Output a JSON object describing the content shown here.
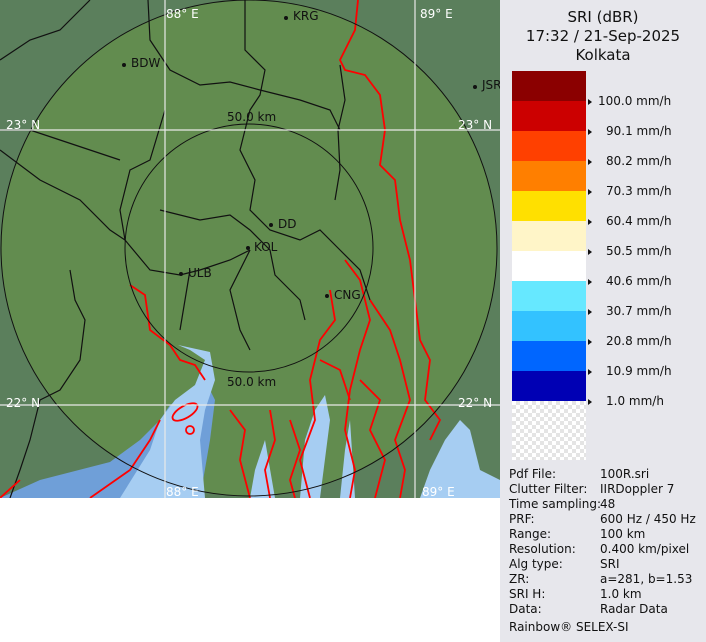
{
  "header": {
    "product": "SRI (dBR)",
    "datetime": "17:32 / 21-Sep-2025",
    "site": "Kolkata"
  },
  "legend": {
    "colors": [
      "#8b0000",
      "#cc0000",
      "#ff4000",
      "#ff7f00",
      "#ffe000",
      "#fff5c8",
      "#ffffff",
      "#66e8ff",
      "#33c2ff",
      "#0066ff",
      "#0000b4"
    ],
    "labels": [
      "100.0 mm/h",
      "90.1 mm/h",
      "80.2 mm/h",
      "70.3 mm/h",
      "60.4 mm/h",
      "50.5 mm/h",
      "40.6 mm/h",
      "30.7 mm/h",
      "20.8 mm/h",
      "10.9 mm/h",
      "1.0 mm/h"
    ]
  },
  "info": [
    {
      "k": "Pdf File:",
      "v": "100R.sri"
    },
    {
      "k": "Clutter Filter:",
      "v": "IIRDoppler 7"
    },
    {
      "k": "Time sampling:",
      "v": "48"
    },
    {
      "k": "PRF:",
      "v": "600 Hz / 450 Hz"
    },
    {
      "k": "Range:",
      "v": "100 km"
    },
    {
      "k": "Resolution:",
      "v": "0.400 km/pixel"
    },
    {
      "k": "Alg type:",
      "v": "SRI"
    },
    {
      "k": "ZR:",
      "v": "a=281, b=1.53"
    },
    {
      "k": "SRI H:",
      "v": "1.0 km"
    },
    {
      "k": "Data:",
      "v": "Radar Data"
    }
  ],
  "footer": "Rainbow® SELEX-SI",
  "map": {
    "grid": {
      "lon1": "88° E",
      "lon2": "89° E",
      "lat1": "23° N",
      "lat2": "22° N"
    },
    "ring_label": "50.0 km",
    "cities": [
      "KRG",
      "BDW",
      "JSR",
      "DD",
      "KOL",
      "ULB",
      "CNG"
    ],
    "colors": {
      "land_inside": "#628c4f",
      "land_outside": "#5b7f5c",
      "river_water": "#a6cdf2",
      "sea": "#6f9fd8",
      "border": "#ff0000"
    }
  }
}
